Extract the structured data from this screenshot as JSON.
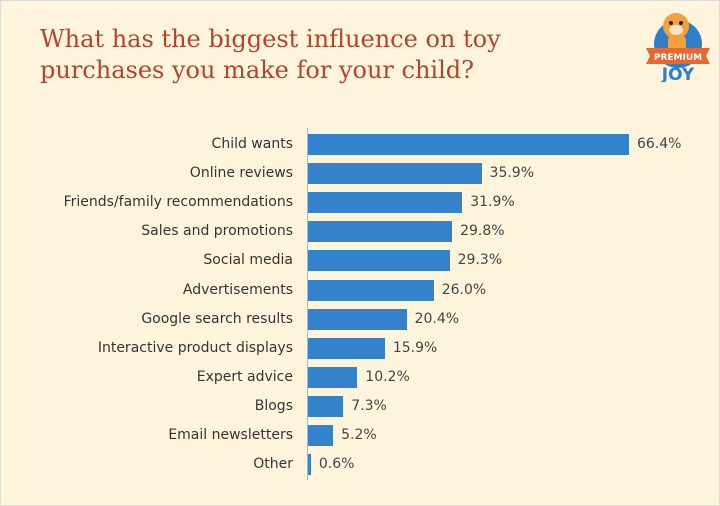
{
  "title": "What has the biggest influence on toy purchases you make for your child?",
  "logo": {
    "top_text": "PREMIUM",
    "bottom_text": "JOY"
  },
  "colors": {
    "bar": "#3481cc",
    "title": "#b5432b",
    "background": "#fff5dc"
  },
  "chart_data": {
    "type": "bar",
    "orientation": "horizontal",
    "title": "What has the biggest influence on toy purchases you make for your child?",
    "categories": [
      "Child wants",
      "Online reviews",
      "Friends/family recommendations",
      "Sales and promotions",
      "Social media",
      "Advertisements",
      "Google search results",
      "Interactive product displays",
      "Expert advice",
      "Blogs",
      "Email newsletters",
      "Other"
    ],
    "values": [
      66.4,
      35.9,
      31.9,
      29.8,
      29.3,
      26.0,
      20.4,
      15.9,
      10.2,
      7.3,
      5.2,
      0.6
    ],
    "value_labels": [
      "66.4%",
      "35.9%",
      "31.9%",
      "29.8%",
      "29.3%",
      "26.0%",
      "20.4%",
      "15.9%",
      "10.2%",
      "7.3%",
      "5.2%",
      "0.6%"
    ],
    "xlabel": "",
    "ylabel": "",
    "unit": "%",
    "grid": false,
    "legend": "none"
  }
}
